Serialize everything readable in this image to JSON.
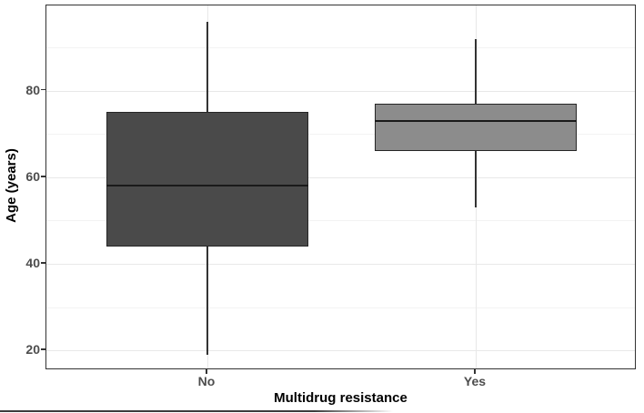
{
  "figure": {
    "background": "#ffffff",
    "panel_border_color": "#333333",
    "grid_major_color": "#e8e8e8",
    "grid_minor_color": "#f3f3f3",
    "axis_text_color": "#4d4d4d",
    "axis_title_color": "#000000"
  },
  "chart_data": {
    "type": "boxplot",
    "title": "",
    "xlabel": "Multidrug resistance",
    "ylabel": "Age (years)",
    "categories": [
      "No",
      "Yes"
    ],
    "series": [
      {
        "name": "No",
        "min": 19,
        "q1": 44,
        "median": 58,
        "q3": 75,
        "max": 96,
        "fill": "#4a4a4a",
        "stroke": "#262626"
      },
      {
        "name": "Yes",
        "min": 53,
        "q1": 66,
        "median": 73,
        "q3": 77,
        "max": 92,
        "fill": "#8c8c8c",
        "stroke": "#262626"
      }
    ],
    "y_ticks": [
      20,
      40,
      60,
      80
    ],
    "y_minor_ticks": [
      30,
      50,
      70,
      90
    ],
    "ylim": [
      15.4,
      99.7
    ],
    "box_width_fraction": 0.341,
    "grid": "horizontal major+minor gridlines, vertical major gridline per category",
    "legend": "none"
  }
}
